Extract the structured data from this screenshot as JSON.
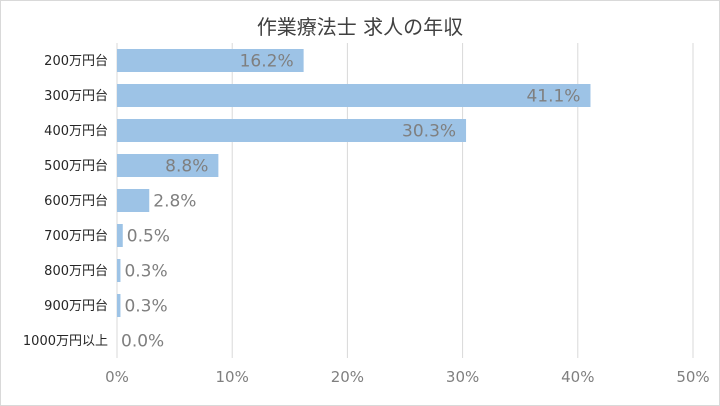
{
  "chart_data": {
    "type": "bar",
    "orientation": "horizontal",
    "title": "作業療法士 求人の年収",
    "categories": [
      "200万円台",
      "300万円台",
      "400万円台",
      "500万円台",
      "600万円台",
      "700万円台",
      "800万円台",
      "900万円台",
      "1000万円以上"
    ],
    "values": [
      16.2,
      41.1,
      30.3,
      8.8,
      2.8,
      0.5,
      0.3,
      0.3,
      0.0
    ],
    "data_labels": [
      "16.2%",
      "41.1%",
      "30.3%",
      "8.8%",
      "2.8%",
      "0.5%",
      "0.3%",
      "0.3%",
      "0.0%"
    ],
    "xlim": [
      0,
      50
    ],
    "xticks": [
      0,
      10,
      20,
      30,
      40,
      50
    ],
    "xtick_labels": [
      "0%",
      "10%",
      "20%",
      "30%",
      "40%",
      "50%"
    ],
    "grid": "vertical",
    "bar_color": "#9dc3e6",
    "grid_color": "#d9d9d9"
  }
}
